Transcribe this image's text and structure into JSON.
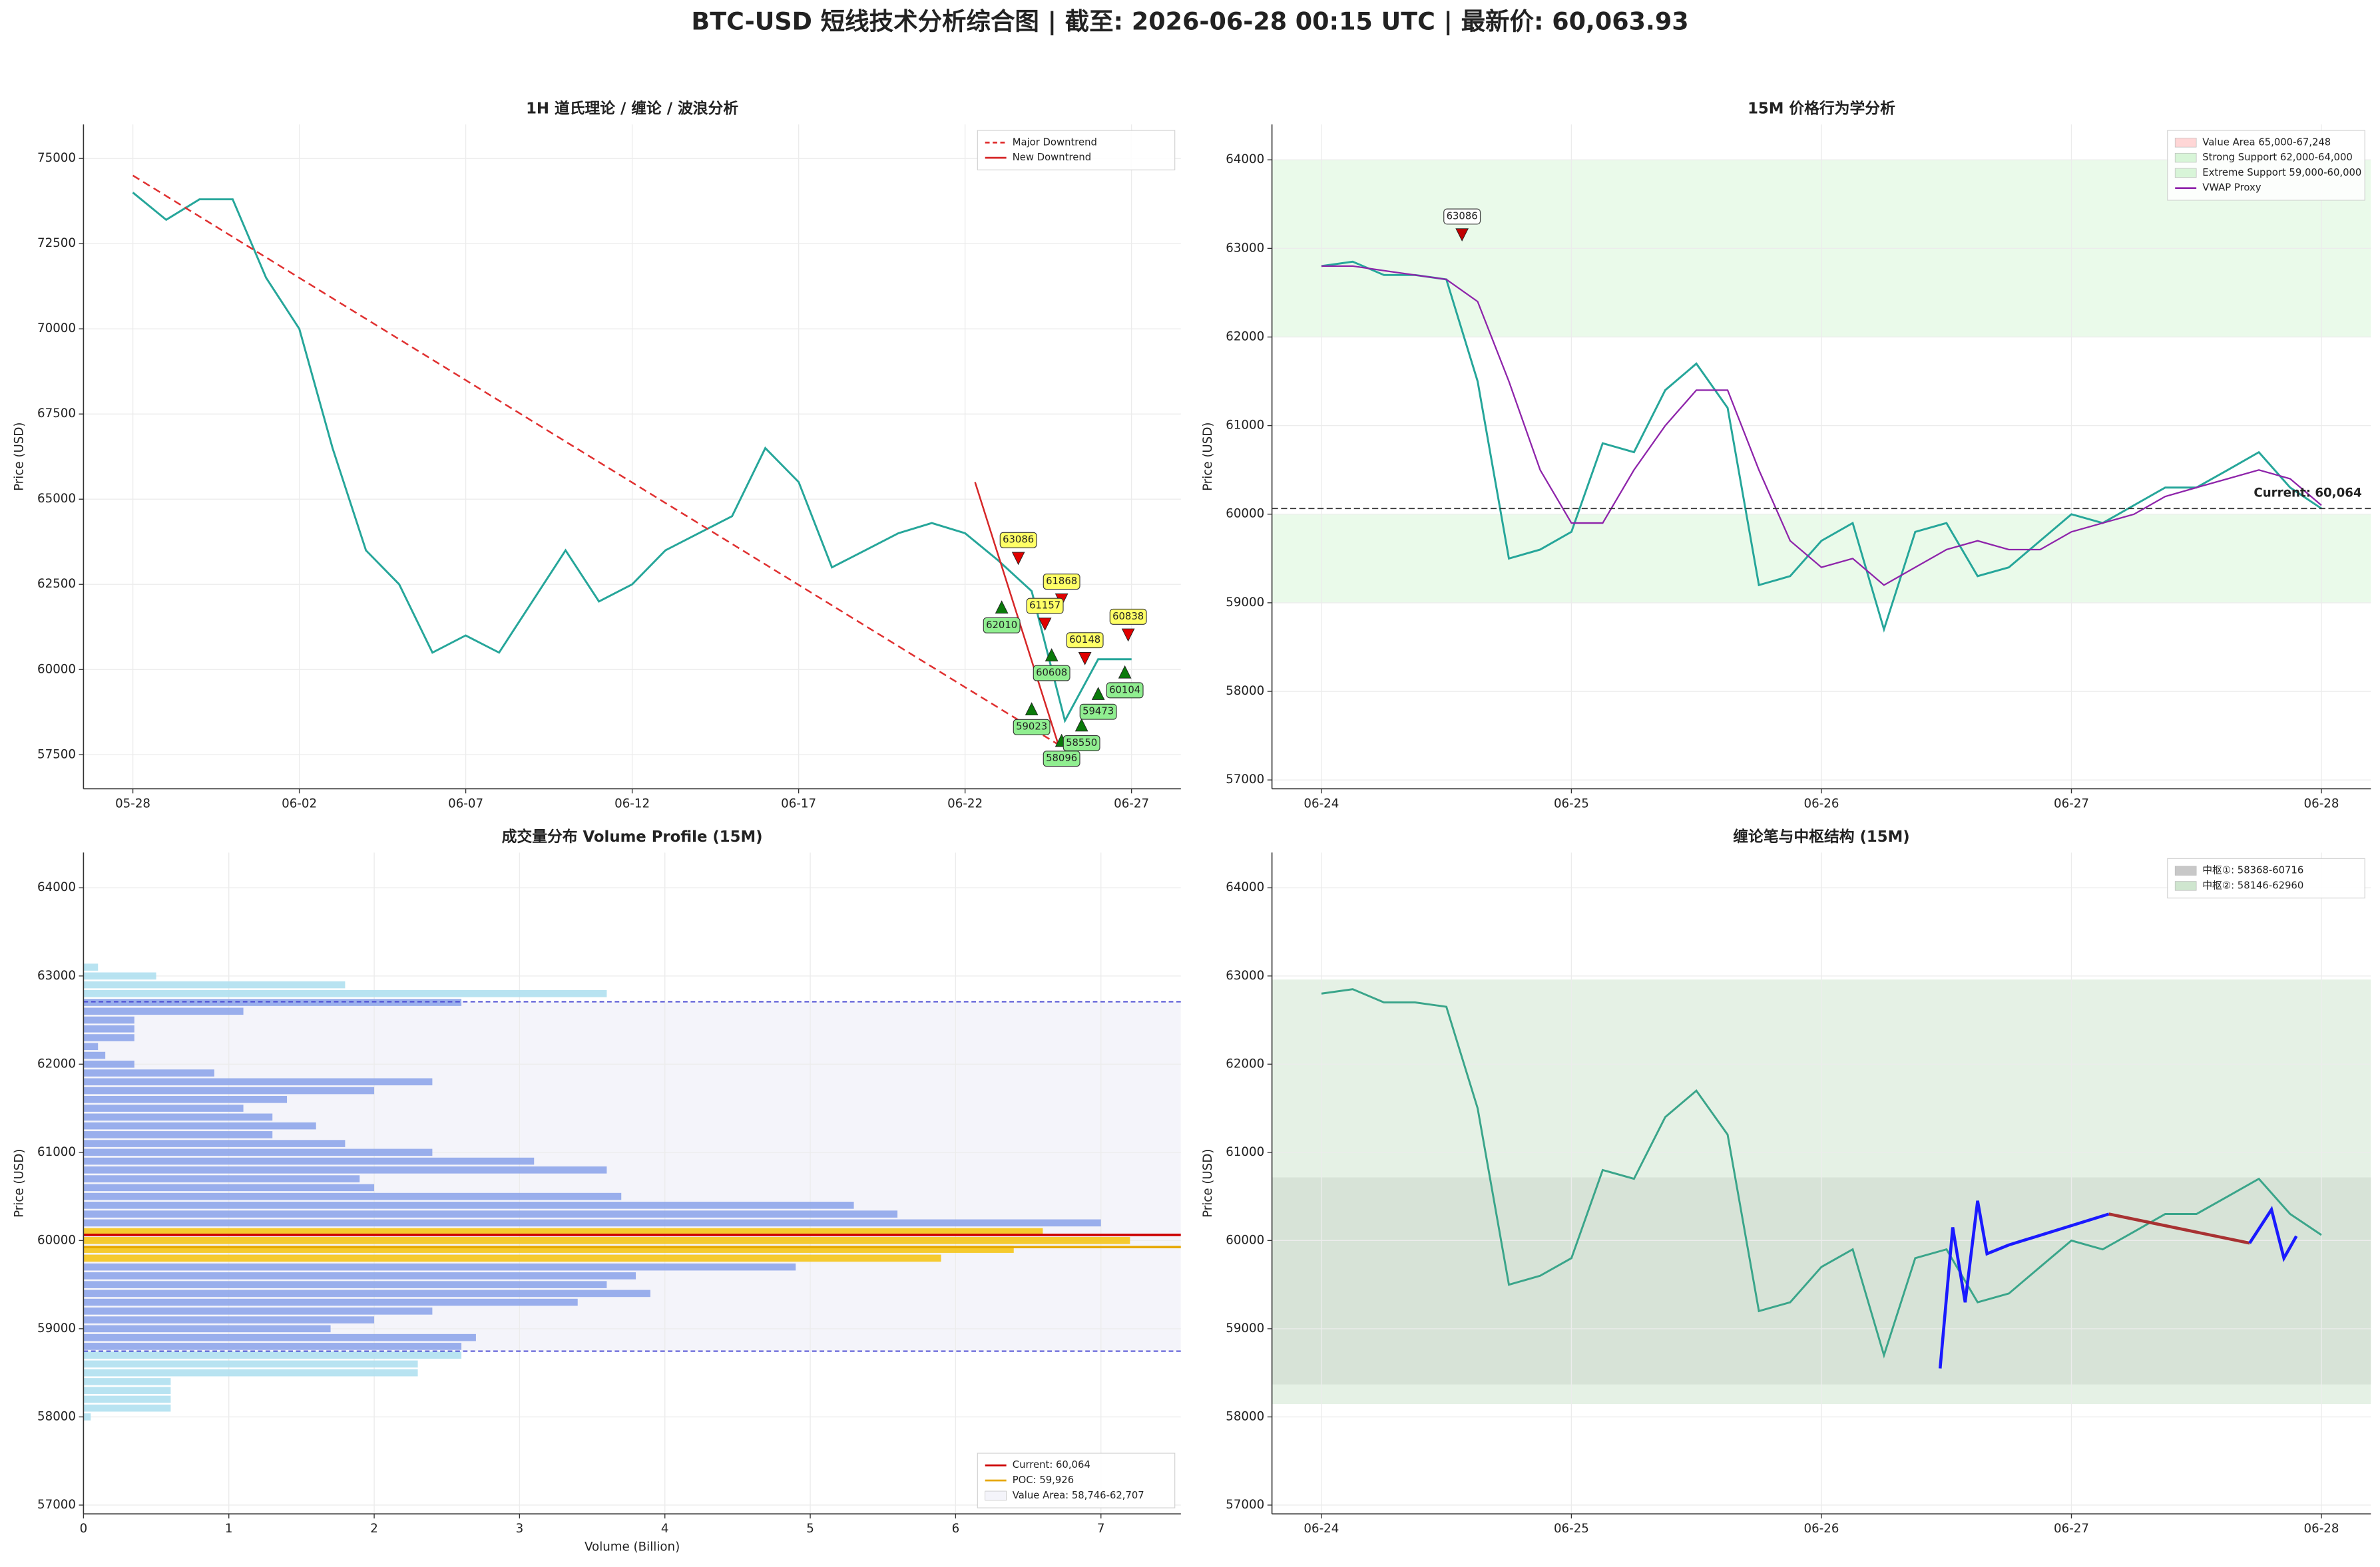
{
  "title": "BTC-USD 短线技术分析综合图 | 截至: 2026-06-28 00:15 UTC | 最新价: 60,063.93",
  "chart_data": [
    {
      "type": "line",
      "title": "1H 道氏理论 / 缠论 / 波浪分析",
      "ylabel": "Price (USD)",
      "categories": [
        "05-28",
        null,
        null,
        null,
        null,
        "06-02",
        null,
        null,
        null,
        null,
        "06-07",
        null,
        null,
        null,
        null,
        "06-12",
        null,
        null,
        null,
        null,
        "06-17",
        null,
        null,
        null,
        null,
        "06-22",
        null,
        null,
        null,
        null,
        "06-27"
      ],
      "series": [
        {
          "color": "#26a69a",
          "values": [
            74000,
            73200,
            73800,
            73800,
            71500,
            70000,
            66500,
            63500,
            62500,
            60500,
            61000,
            60500,
            62000,
            63500,
            62000,
            62500,
            63500,
            64000,
            64500,
            66500,
            65500,
            63000,
            63500,
            64000,
            64300,
            64000,
            63200,
            62300,
            58500,
            60300,
            60300
          ]
        }
      ],
      "trendlines": [
        {
          "name": "Major Downtrend",
          "color": "#e03030",
          "style": "dashed",
          "x": [
            0,
            27.8
          ],
          "values": [
            74500,
            57800
          ]
        },
        {
          "name": "New Downtrend",
          "color": "#d62728",
          "style": "solid",
          "x": [
            25.3,
            27.8
          ],
          "values": [
            65500,
            57800
          ]
        }
      ],
      "annotations": [
        {
          "kind": "high",
          "color": "#e00000",
          "box": "#ffff66",
          "points": [
            {
              "x": 26.6,
              "value": 63086
            },
            {
              "x": 27.9,
              "value": 61868
            },
            {
              "x": 27.4,
              "value": 61157
            },
            {
              "x": 28.6,
              "value": 60148
            },
            {
              "x": 29.9,
              "value": 60838
            }
          ]
        },
        {
          "kind": "low",
          "color": "#0a7a0a",
          "box": "#90ee90",
          "points": [
            {
              "x": 26.1,
              "value": 62010
            },
            {
              "x": 27.0,
              "value": 59023
            },
            {
              "x": 27.6,
              "value": 60608
            },
            {
              "x": 27.9,
              "value": 58096
            },
            {
              "x": 28.5,
              "value": 58550
            },
            {
              "x": 29.0,
              "value": 59473
            },
            {
              "x": 29.8,
              "value": 60104
            }
          ]
        }
      ],
      "ylim": [
        56500,
        76000
      ],
      "yticks": [
        57500,
        60000,
        62500,
        65000,
        67500,
        70000,
        72500,
        75000
      ],
      "grid": true,
      "legend": "upper right"
    },
    {
      "type": "line",
      "title": "15M 价格行为学分析",
      "ylabel": "Price (USD)",
      "categories": [
        "06-24",
        null,
        null,
        null,
        null,
        null,
        null,
        null,
        "06-25",
        null,
        null,
        null,
        null,
        null,
        null,
        null,
        "06-26",
        null,
        null,
        null,
        null,
        null,
        null,
        null,
        "06-27",
        null,
        null,
        null,
        null,
        null,
        null,
        null,
        "06-28"
      ],
      "zones": [
        {
          "name": "Value Area 65,000-67,248",
          "range": [
            65000,
            67248
          ],
          "color": "#ffd6d6"
        },
        {
          "name": "Strong Support 62,000-64,000",
          "range": [
            62000,
            64000
          ],
          "color": "#d8f5d8"
        },
        {
          "name": "Extreme Support 59,000-60,000",
          "range": [
            59000,
            60000
          ],
          "color": "#d8f5d8"
        }
      ],
      "series": [
        {
          "color": "#26a69a",
          "values": [
            62800,
            62850,
            62700,
            62700,
            62650,
            61500,
            59500,
            59600,
            59800,
            60800,
            60700,
            61400,
            61700,
            61200,
            59200,
            59300,
            59700,
            59900,
            58700,
            59800,
            59900,
            59300,
            59400,
            59700,
            60000,
            59900,
            60100,
            60300,
            60300,
            60500,
            60700,
            60300,
            60064
          ]
        },
        {
          "name": "VWAP Proxy",
          "color": "#8e24aa",
          "values": [
            62800,
            62800,
            62750,
            62700,
            62650,
            62400,
            61500,
            60500,
            59900,
            59900,
            60500,
            61000,
            61400,
            61400,
            60500,
            59700,
            59400,
            59500,
            59200,
            59400,
            59600,
            59700,
            59600,
            59600,
            59800,
            59900,
            60000,
            60200,
            60300,
            60400,
            60500,
            60400,
            60100
          ]
        }
      ],
      "lines": [
        {
          "value": 60064,
          "label": "Current: 60,064",
          "color": "#333333",
          "style": "dashed",
          "in_legend": false
        }
      ],
      "annotations": [
        {
          "kind": "high",
          "color": "#c00000",
          "box": "#ffffff",
          "points": [
            {
              "x": 4.5,
              "value": 63086
            }
          ]
        }
      ],
      "ylim": [
        56900,
        64400
      ],
      "yticks": [
        57000,
        58000,
        59000,
        60000,
        61000,
        62000,
        63000,
        64000
      ],
      "grid": true,
      "legend": "upper right"
    },
    {
      "type": "barh",
      "title": "成交量分布 Volume Profile (15M)",
      "ylabel": "Price (USD)",
      "xlabel": "Volume (Billion)",
      "categories": [
        58000,
        58100,
        58200,
        58300,
        58400,
        58500,
        58600,
        58700,
        58800,
        58900,
        59000,
        59100,
        59200,
        59300,
        59400,
        59500,
        59600,
        59700,
        59800,
        59900,
        60000,
        60100,
        60200,
        60300,
        60400,
        60500,
        60600,
        60700,
        60800,
        60900,
        61000,
        61100,
        61200,
        61300,
        61400,
        61500,
        61600,
        61700,
        61800,
        61900,
        62000,
        62100,
        62200,
        62300,
        62400,
        62500,
        62600,
        62700,
        62800,
        62900,
        63000,
        63100
      ],
      "values": [
        0.05,
        0.6,
        0.6,
        0.6,
        0.6,
        2.3,
        2.3,
        2.6,
        2.6,
        2.7,
        1.7,
        2.0,
        2.4,
        3.4,
        3.9,
        3.6,
        3.8,
        4.9,
        5.9,
        6.4,
        7.2,
        6.6,
        7.0,
        5.6,
        5.3,
        3.7,
        2.0,
        1.9,
        3.6,
        3.1,
        2.4,
        1.8,
        1.3,
        1.6,
        1.3,
        1.1,
        1.4,
        2.0,
        2.4,
        0.9,
        0.35,
        0.15,
        0.1,
        0.35,
        0.35,
        0.35,
        1.1,
        2.6,
        3.6,
        1.8,
        0.5,
        0.1
      ],
      "bar_colors": [
        "#b0e0ef",
        "#b0e0ef",
        "#b0e0ef",
        "#b0e0ef",
        "#b0e0ef",
        "#b0e0ef",
        "#b0e0ef",
        "#b0e0ef",
        "#8fa6ea",
        "#8fa6ea",
        "#8fa6ea",
        "#8fa6ea",
        "#8fa6ea",
        "#8fa6ea",
        "#8fa6ea",
        "#8fa6ea",
        "#8fa6ea",
        "#8fa6ea",
        "#f5c518",
        "#f5c518",
        "#f5c518",
        "#f5c518",
        "#8fa6ea",
        "#8fa6ea",
        "#8fa6ea",
        "#8fa6ea",
        "#8fa6ea",
        "#8fa6ea",
        "#8fa6ea",
        "#8fa6ea",
        "#8fa6ea",
        "#8fa6ea",
        "#8fa6ea",
        "#8fa6ea",
        "#8fa6ea",
        "#8fa6ea",
        "#8fa6ea",
        "#8fa6ea",
        "#8fa6ea",
        "#8fa6ea",
        "#8fa6ea",
        "#8fa6ea",
        "#8fa6ea",
        "#8fa6ea",
        "#8fa6ea",
        "#8fa6ea",
        "#8fa6ea",
        "#8fa6ea",
        "#b0e0ef",
        "#b0e0ef",
        "#b0e0ef",
        "#b0e0ef"
      ],
      "lines": [
        {
          "value": 59926,
          "label": "POC: 59,926",
          "color": "#e6a800",
          "style": "solid",
          "in_legend": true
        },
        {
          "value": 60064,
          "label": "Current: 60,064",
          "color": "#cc0000",
          "style": "solid",
          "in_legend": true
        }
      ],
      "value_area": {
        "range": [
          58746,
          62707
        ],
        "label": "Value Area: 58,746-62,707",
        "color": "#4040d0"
      },
      "xlim": [
        0,
        7.55
      ],
      "xticks": [
        0,
        1,
        2,
        3,
        4,
        5,
        6,
        7
      ],
      "ylim": [
        56900,
        64400
      ],
      "yticks": [
        57000,
        58000,
        59000,
        60000,
        61000,
        62000,
        63000,
        64000
      ],
      "grid": true,
      "legend": "lower right"
    },
    {
      "type": "line",
      "title": "缠论笔与中枢结构 (15M)",
      "ylabel": "Price (USD)",
      "categories": [
        "06-24",
        null,
        null,
        null,
        null,
        null,
        null,
        null,
        "06-25",
        null,
        null,
        null,
        null,
        null,
        null,
        null,
        "06-26",
        null,
        null,
        null,
        null,
        null,
        null,
        null,
        "06-27",
        null,
        null,
        null,
        null,
        null,
        null,
        null,
        "06-28"
      ],
      "zones": [
        {
          "name": "中枢①: 58368-60716",
          "range": [
            58368,
            60716
          ],
          "color": "#c8c8c8"
        },
        {
          "name": "中枢②: 58146-62960",
          "range": [
            58146,
            62960
          ],
          "color": "#cfe6cf"
        }
      ],
      "series": [
        {
          "color": "#3aa58a",
          "values": [
            62800,
            62850,
            62700,
            62700,
            62650,
            61500,
            59500,
            59600,
            59800,
            60800,
            60700,
            61400,
            61700,
            61200,
            59200,
            59300,
            59700,
            59900,
            58700,
            59800,
            59900,
            59300,
            59400,
            59700,
            60000,
            59900,
            60100,
            60300,
            60300,
            60500,
            60700,
            60300,
            60064
          ]
        }
      ],
      "pens": [
        {
          "color": "#1a1aff",
          "x": [
            19.8,
            20.2,
            20.6,
            21.0,
            21.3,
            22.0,
            25.2
          ],
          "values": [
            58550,
            60150,
            59300,
            60450,
            59850,
            59950,
            60300
          ]
        },
        {
          "color": "#a83232",
          "x": [
            25.2,
            29.7
          ],
          "values": [
            60300,
            59970
          ]
        },
        {
          "color": "#1a1aff",
          "x": [
            29.7,
            30.4,
            30.8,
            31.2
          ],
          "values": [
            59970,
            60350,
            59800,
            60050
          ]
        }
      ],
      "ylim": [
        56900,
        64400
      ],
      "yticks": [
        57000,
        58000,
        59000,
        60000,
        61000,
        62000,
        63000,
        64000
      ],
      "grid": true,
      "legend": "upper right"
    }
  ]
}
